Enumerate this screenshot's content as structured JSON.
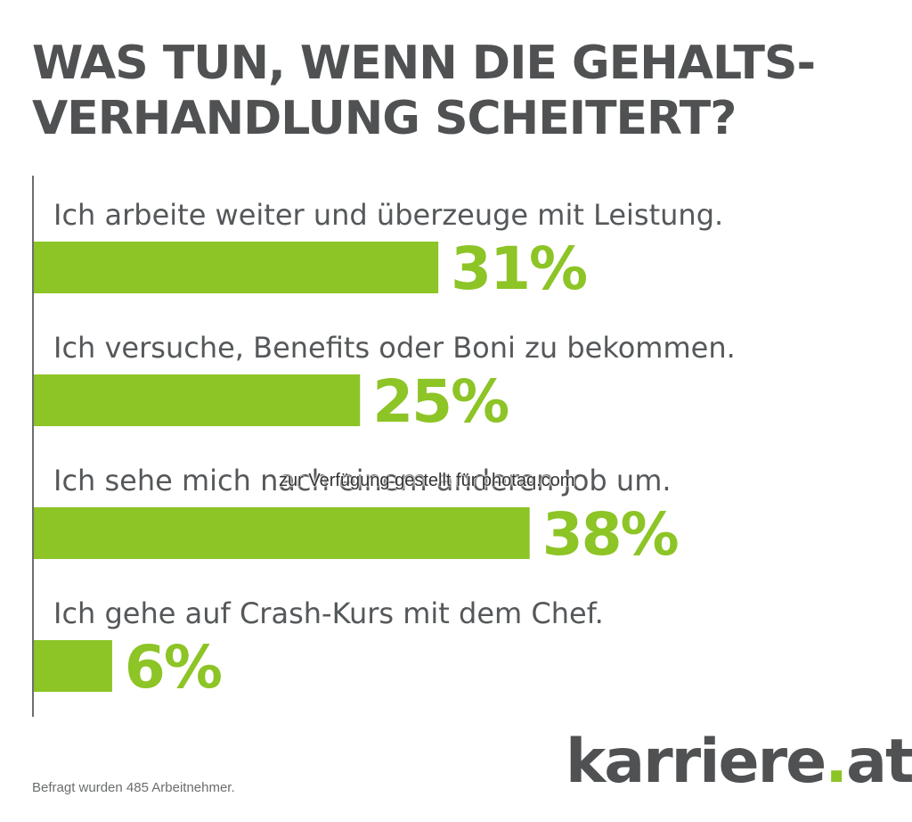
{
  "title_lines": [
    "WAS TUN, WENN DIE GEHALTS-",
    "VERHANDLUNG SCHEITERT?"
  ],
  "chart_data": {
    "type": "bar",
    "orientation": "horizontal",
    "title": "WAS TUN, WENN DIE GEHALTSVERHANDLUNG SCHEITERT?",
    "categories": [
      "Ich arbeite weiter und überzeuge mit Leistung.",
      "Ich versuche, Benefits oder Boni zu bekommen.",
      "Ich sehe mich nach einem anderen Job um.",
      "Ich gehe auf Crash-Kurs mit dem Chef."
    ],
    "values": [
      31,
      25,
      38,
      6
    ],
    "value_labels": [
      "31%",
      "25%",
      "38%",
      "6%"
    ],
    "unit": "%",
    "xlim": [
      0,
      100
    ],
    "colors": {
      "bar": "#8dc426",
      "value_text": "#8dc426",
      "axis": "#6b6d6e"
    }
  },
  "watermark": "zur Verfügung gestellt für photaq.com",
  "footnote": "Befragt wurden 485 Arbeitnehmer.",
  "logo": {
    "name": "karriere",
    "dot": ".",
    "tld": "at"
  }
}
